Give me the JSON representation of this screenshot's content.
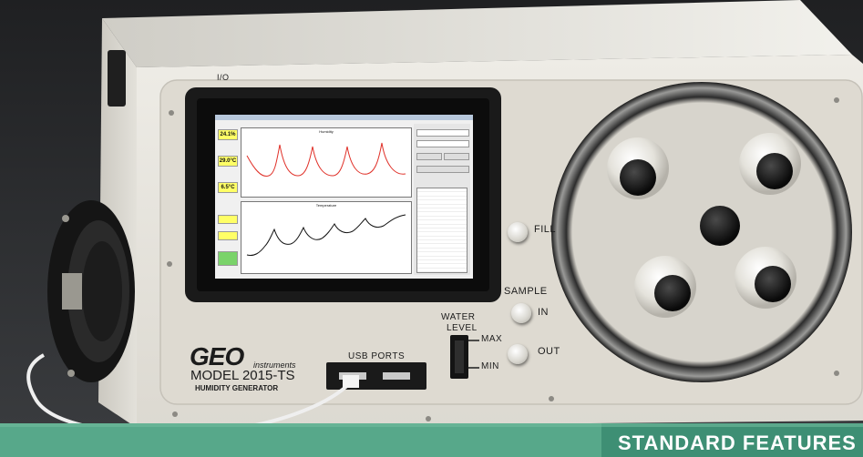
{
  "device": {
    "brand": "GEO",
    "brand_suffix": "instruments",
    "model": "MODEL 2015-TS",
    "subtitle": "HUMIDITY GENERATOR",
    "io_label": "I/O",
    "usb_label": "USB PORTS",
    "fill_label": "FILL",
    "sample_label": "SAMPLE",
    "in_label": "IN",
    "out_label": "OUT",
    "water_label": "WATER",
    "level_label": "LEVEL",
    "max_label": "MAX",
    "min_label": "MIN"
  },
  "screen": {
    "humidity_value": "24.1%",
    "temperature_value": "29.0°C",
    "dewpoint_value": "6.5°C",
    "humidity_chart_title": "Humidity",
    "temperature_chart_title": "Temperature"
  },
  "banner": {
    "right_text": "STANDARD FEATURES"
  },
  "colors": {
    "cabinet": "#e9e7e0",
    "faceplate": "#dedad1",
    "background": "#2a2b2e",
    "banner_green": "#57a88a",
    "chart_red": "#e0322a"
  }
}
